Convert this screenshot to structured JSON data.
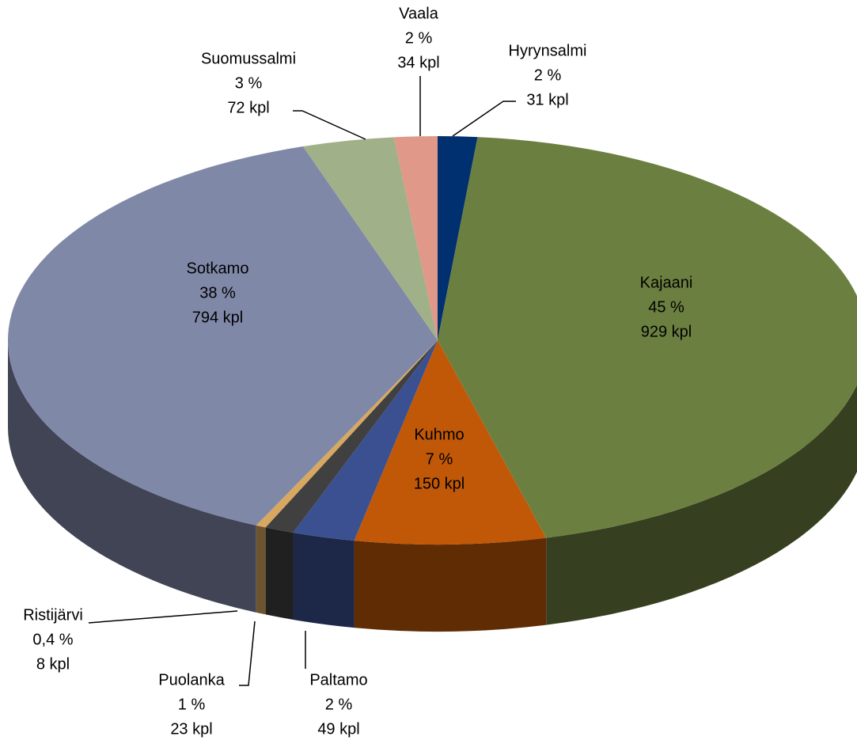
{
  "chart_data": {
    "type": "pie",
    "categories": [
      "Hyrynsalmi",
      "Kajaani",
      "Kuhmo",
      "Paltamo",
      "Puolanka",
      "Ristijärvi",
      "Sotkamo",
      "Suomussalmi",
      "Vaala"
    ],
    "values": [
      31,
      929,
      150,
      49,
      23,
      8,
      794,
      72,
      34
    ],
    "value_labels": [
      "31 kpl",
      "929 kpl",
      "150 kpl",
      "49 kpl",
      "23 kpl",
      "8 kpl",
      "794 kpl",
      "72 kpl",
      "34 kpl"
    ],
    "percent_labels": [
      "2 %",
      "45 %",
      "7 %",
      "2 %",
      "1 %",
      "0,4 %",
      "38 %",
      "3 %",
      "2 %"
    ],
    "colors": [
      "#003070",
      "#6b8040",
      "#c05808",
      "#3a5090",
      "#404040",
      "#d8a860",
      "#8088a8",
      "#a0b088",
      "#e09888"
    ]
  }
}
